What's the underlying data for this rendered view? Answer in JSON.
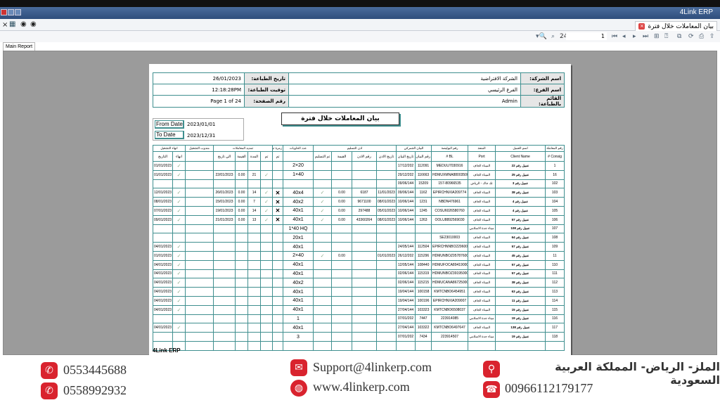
{
  "window": {
    "title": "4Link ERP"
  },
  "doc_tab": {
    "label": "بيان المعاملات خلال فترة"
  },
  "toolbar": {
    "page_total": "24/",
    "page_input": "1"
  },
  "report_tab": "Main Report",
  "info": {
    "company_label": "اسم الشركة:",
    "company_value": "الشركة الافتراضية",
    "branch_label": "اسم الفرع:",
    "branch_value": "الفرع الرئيسي",
    "printer_label": "القائم بالطباعة:",
    "printer_value": "Admin",
    "print_date_label": "تاريخ الطباعة:",
    "print_date_value": "26/01/2023",
    "print_time_label": "توقيت الطباعة:",
    "print_time_value": "12:18:28PM",
    "page_label": "رقم الصفحة:",
    "page_value": "Page 1 of 24"
  },
  "report_title": "بيان المعاملات خلال فترة",
  "dates": {
    "from_label": "From Date",
    "from_value": "2023/01/01",
    "to_label": "To Date",
    "to_value": "2023/12/31"
  },
  "table": {
    "groups": [
      "انهاء التشغيل",
      "مندوب التشغيل",
      "تمديد المعاملات",
      "زمرة ترحيل",
      "عدد الحاويات",
      "اذن التسليم",
      "البيان الجمركي",
      "رقم البوليصة",
      "المنفذ",
      "اسم العميل",
      "رقم المعاملة"
    ],
    "columns": [
      "التاريخ",
      "انهاء",
      "",
      "الي تاريخ",
      "القيمة",
      "المدة",
      "تم",
      "تم",
      "",
      "تم التسليم",
      "القيمة",
      "رقم الاذن",
      "تاريخ الاذن",
      "تاريخ البيان",
      "رقم البيان",
      "BL #",
      "Port",
      "Client Name",
      "Consig #"
    ],
    "rows": [
      [
        "01/01/2023",
        "✓",
        "",
        "",
        "",
        "",
        "",
        "",
        "2×20",
        "",
        "",
        "",
        "",
        "17/12/202",
        "112091",
        "MEDUU7030916",
        "الميناء الجاف",
        "عميل رقم 22",
        "1"
      ],
      [
        "01/01/2023",
        "✓",
        "",
        "22/01/2023",
        "0.00",
        "21",
        "✓",
        "",
        "1×40",
        "",
        "",
        "",
        "",
        "29/12/202",
        "116663",
        "HDMUXMNA88003500",
        "الميناء الجاف",
        "عميل رقم 25",
        "16"
      ],
      [
        "",
        "",
        "",
        "",
        "",
        "",
        "",
        "",
        "",
        "",
        "",
        "",
        "",
        "09/06/144",
        "15209",
        "157-80966535",
        "تك جاك - الرياض",
        "عميل رقم 3",
        "102"
      ],
      [
        "12/01/2023",
        "✓",
        "",
        "26/01/2023",
        "0.00",
        "14",
        "✓",
        "✕",
        "40x4",
        "✓",
        "0.00",
        "6187",
        "11/01/2023",
        "09/06/144",
        "1162",
        "EPIRCHNXIA209774",
        "الميناء الجاف",
        "عميل رقم 38",
        "103"
      ],
      [
        "08/01/2023",
        "✓",
        "",
        "15/01/2023",
        "0.00",
        "7",
        "✓",
        "✕",
        "40x2",
        "✓",
        "0.00",
        "9671100",
        "08/01/2023",
        "10/06/144",
        "1231",
        "NBDN476961",
        "الميناء الجاف",
        "عميل رقم 4",
        "104"
      ],
      [
        "07/01/2023",
        "✓",
        "",
        "19/01/2023",
        "0.00",
        "14",
        "✓",
        "✕",
        "40x1",
        "✓",
        "0.00",
        "297488",
        "05/01/2023",
        "10/06/144",
        "1245",
        "COSU6026580760",
        "الميناء الجاف",
        "عميل رقم 4",
        "105"
      ],
      [
        "09/01/2023",
        "✓",
        "",
        "21/01/2023",
        "0.00",
        "13",
        "✓",
        "✕",
        "40x1",
        "✓",
        "0.00",
        "43360264",
        "08/01/2023",
        "10/06/144",
        "1263",
        "OOLU8892569030",
        "الميناء الجاف",
        "عميل رقم 57",
        "106"
      ],
      [
        "",
        "",
        "",
        "",
        "",
        "",
        "",
        "",
        "1*40 HQ",
        "",
        "",
        "",
        "",
        "",
        "",
        "",
        "ميناء جدة الاسلامي",
        "عميل رقم 108",
        "107"
      ],
      [
        "",
        "",
        "",
        "",
        "",
        "",
        "",
        "",
        "20x1",
        "",
        "",
        "",
        "",
        "",
        "",
        "SE23010003",
        "الميناء الجاف",
        "عميل رقم 64",
        "108"
      ],
      [
        "04/01/2023",
        "✓",
        "",
        "",
        "",
        "",
        "",
        "",
        "40x1",
        "",
        "",
        "",
        "",
        "24/05/144",
        "112504",
        "EPIRCHNNBO229600",
        "الميناء الجاف",
        "عميل رقم 57",
        "109"
      ],
      [
        "01/01/2023",
        "✓",
        "",
        "",
        "",
        "",
        "",
        "",
        "2×40",
        "✓",
        "0.00",
        "",
        "01/01/2023",
        "26/12/202",
        "115296",
        "HDMUNBOZ05787600",
        "الميناء الجاف",
        "عميل رقم 45",
        "11"
      ],
      [
        "04/01/2023",
        "✓",
        "",
        "",
        "",
        "",
        "",
        "",
        "40x1",
        "",
        "",
        "",
        "",
        "12/05/144",
        "108440",
        "HDMUFOCA89419000",
        "الميناء الجاف",
        "عميل رقم 57",
        "110"
      ],
      [
        "04/01/2023",
        "✓",
        "",
        "",
        "",
        "",
        "",
        "",
        "40x1",
        "",
        "",
        "",
        "",
        "02/06/144",
        "115319",
        "HDMUNBOZ39195000",
        "الميناء الجاف",
        "عميل رقم 57",
        "111"
      ],
      [
        "04/01/2023",
        "✓",
        "",
        "",
        "",
        "",
        "",
        "",
        "40x2",
        "",
        "",
        "",
        "",
        "02/06/144",
        "115215",
        "HDMUCANA86725000",
        "الميناء الجاف",
        "عميل رقم 38",
        "112"
      ],
      [
        "04/01/2023",
        "✓",
        "",
        "",
        "",
        "",
        "",
        "",
        "40x1",
        "",
        "",
        "",
        "",
        "19/04/144",
        "100158",
        "KMTCNBO6454951",
        "الميناء الجاف",
        "عميل رقم 63",
        "113"
      ],
      [
        "04/01/2023",
        "✓",
        "",
        "",
        "",
        "",
        "",
        "",
        "40x1",
        "",
        "",
        "",
        "",
        "19/04/144",
        "100196",
        "EPIRCHNXIA209007",
        "الميناء الجاف",
        "عميل رقم 11",
        "114"
      ],
      [
        "04/01/2023",
        "✓",
        "",
        "",
        "",
        "",
        "",
        "",
        "40x1",
        "",
        "",
        "",
        "",
        "27/04/144",
        "103323",
        "KMTCNBO6508037",
        "الميناء الجاف",
        "عميل رقم 15",
        "115"
      ],
      [
        "",
        "",
        "",
        "",
        "",
        "",
        "",
        "",
        "1",
        "",
        "",
        "",
        "",
        "07/01/202",
        "7447",
        "223914085",
        "ميناء جدة الاسلامي",
        "عميل رقم 19",
        "116"
      ],
      [
        "04/01/2023",
        "✓",
        "",
        "",
        "",
        "",
        "",
        "",
        "40x1",
        "",
        "",
        "",
        "",
        "27/04/144",
        "103322",
        "KMTCNBO6497647",
        "الميناء الجاف",
        "عميل رقم 138",
        "117"
      ],
      [
        "",
        "",
        "",
        "",
        "",
        "",
        "",
        "",
        "3",
        "",
        "",
        "",
        "",
        "07/01/202",
        "7434",
        "223914507",
        "ميناء جدة الاسلامي",
        "عميل رقم 19",
        "118"
      ]
    ]
  },
  "report_footer": "4Link ERP",
  "banner": {
    "phone1": "0553445688",
    "phone2": "0558992932",
    "email": "Support@4linkerp.com",
    "website": "www.4linkerp.com",
    "address": "الملز- الرياض- المملكة العربية السعودية",
    "landline": "00966112179177",
    "accent": "#d9232e"
  }
}
